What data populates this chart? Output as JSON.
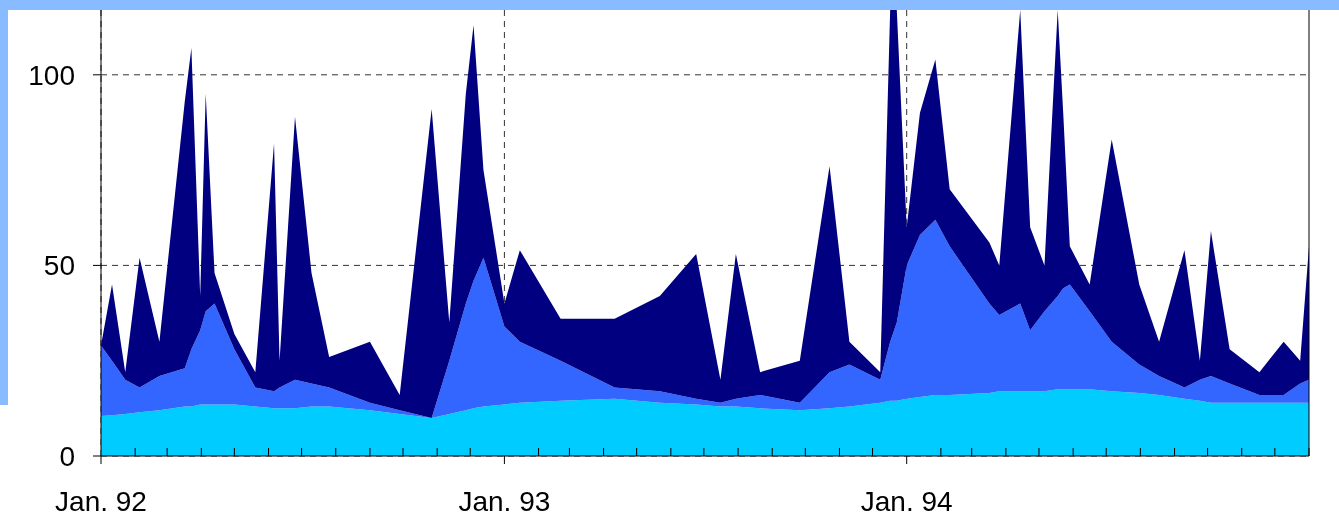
{
  "chart_data": {
    "type": "area",
    "stacked": true,
    "grid": true,
    "line_style": "dashed",
    "xlim": [
      "1992-01-01",
      "1995-01-01"
    ],
    "ylim": [
      0,
      117
    ],
    "yticks": [
      0,
      50,
      100
    ],
    "xticks": [
      {
        "value": "1992-01-01",
        "label": "Jan. 92"
      },
      {
        "value": "1992-02-01",
        "label": null
      },
      {
        "value": "1992-03-01",
        "label": null
      },
      {
        "value": "1992-04-01",
        "label": null
      },
      {
        "value": "1992-05-01",
        "label": null
      },
      {
        "value": "1992-06-01",
        "label": null
      },
      {
        "value": "1992-07-01",
        "label": null
      },
      {
        "value": "1992-08-01",
        "label": null
      },
      {
        "value": "1992-09-01",
        "label": null
      },
      {
        "value": "1992-10-01",
        "label": null
      },
      {
        "value": "1992-11-01",
        "label": null
      },
      {
        "value": "1992-12-01",
        "label": null
      },
      {
        "value": "1993-01-01",
        "label": "Jan. 93"
      },
      {
        "value": "1993-02-01",
        "label": null
      },
      {
        "value": "1993-03-01",
        "label": null
      },
      {
        "value": "1993-04-01",
        "label": null
      },
      {
        "value": "1993-05-01",
        "label": null
      },
      {
        "value": "1993-06-01",
        "label": null
      },
      {
        "value": "1993-07-01",
        "label": null
      },
      {
        "value": "1993-08-01",
        "label": null
      },
      {
        "value": "1993-09-01",
        "label": null
      },
      {
        "value": "1993-10-01",
        "label": null
      },
      {
        "value": "1993-11-01",
        "label": null
      },
      {
        "value": "1993-12-01",
        "label": null
      },
      {
        "value": "1994-01-01",
        "label": "Jan. 94"
      },
      {
        "value": "1994-02-01",
        "label": null
      },
      {
        "value": "1994-03-01",
        "label": null
      },
      {
        "value": "1994-04-01",
        "label": null
      },
      {
        "value": "1994-05-01",
        "label": null
      },
      {
        "value": "1994-06-01",
        "label": null
      },
      {
        "value": "1994-07-01",
        "label": null
      },
      {
        "value": "1994-08-01",
        "label": null
      },
      {
        "value": "1994-09-01",
        "label": null
      },
      {
        "value": "1994-10-01",
        "label": null
      },
      {
        "value": "1994-11-01",
        "label": null
      },
      {
        "value": "1994-12-01",
        "label": null
      },
      {
        "value": "1995-01-01",
        "label": null
      }
    ],
    "x": [
      "1992-01-01",
      "1992-01-11",
      "1992-01-23",
      "1992-02-05",
      "1992-02-23",
      "1992-03-17",
      "1992-03-23",
      "1992-03-31",
      "1992-04-05",
      "1992-04-13",
      "1992-05-01",
      "1992-05-20",
      "1992-06-06",
      "1992-06-11",
      "1992-06-25",
      "1992-07-10",
      "1992-07-26",
      "1992-09-01",
      "1992-09-28",
      "1992-10-27",
      "1992-11-12",
      "1992-11-27",
      "1992-12-04",
      "1992-12-13",
      "1993-01-01",
      "1993-01-15",
      "1993-02-21",
      "1993-04-11",
      "1993-05-22",
      "1993-06-24",
      "1993-07-16",
      "1993-07-30",
      "1993-08-21",
      "1993-09-26",
      "1993-10-23",
      "1993-11-10",
      "1993-12-08",
      "1993-12-17",
      "1993-12-23",
      "1994-01-01",
      "1994-01-13",
      "1994-01-27",
      "1994-02-09",
      "1994-03-17",
      "1994-03-26",
      "1994-04-14",
      "1994-04-23",
      "1994-05-06",
      "1994-05-18",
      "1994-05-23",
      "1994-05-29",
      "1994-06-16",
      "1994-07-06",
      "1994-07-31",
      "1994-08-18",
      "1994-09-10",
      "1994-09-24",
      "1994-10-04",
      "1994-10-21",
      "1994-11-17",
      "1994-12-09",
      "1994-12-24",
      "1995-01-01"
    ],
    "series": [
      {
        "color": "#00ccff",
        "values": [
          10.5,
          10.7,
          11,
          11.5,
          12,
          13,
          13,
          13.5,
          13.5,
          13.5,
          13.5,
          13,
          12.5,
          12.5,
          12.5,
          13,
          13,
          12,
          11,
          10,
          11,
          12,
          12.5,
          13,
          13.5,
          14,
          14.5,
          15,
          14,
          13.5,
          13,
          13,
          12.5,
          12,
          12.5,
          13,
          14,
          14.5,
          14.5,
          15,
          15.5,
          16,
          16,
          16.5,
          17,
          17,
          17,
          17,
          17.5,
          17.5,
          17.5,
          17.5,
          17,
          16.5,
          16,
          15,
          14.5,
          14,
          14,
          14,
          14,
          14,
          14
        ]
      },
      {
        "color": "#3366ff",
        "values": [
          18.5,
          14.3,
          9,
          6.5,
          9,
          10,
          15,
          19.5,
          24.5,
          26.5,
          14.5,
          5,
          4.5,
          5.5,
          7.5,
          6,
          5,
          2,
          1,
          0,
          14,
          28,
          33.5,
          39,
          20.5,
          16,
          10.5,
          3,
          3,
          1.5,
          1,
          2,
          3.5,
          2,
          9.5,
          11,
          6,
          15.5,
          20.5,
          35,
          42.5,
          46,
          39,
          23.5,
          20,
          23,
          16,
          21,
          24.5,
          26.5,
          27.5,
          20.5,
          13,
          7.5,
          5,
          3,
          5.5,
          7,
          5,
          2,
          2,
          5,
          6
        ]
      },
      {
        "color": "#000080",
        "values": [
          0,
          20,
          2,
          34,
          9,
          70,
          79,
          9,
          57,
          8,
          4,
          4,
          65,
          7,
          69,
          29,
          8,
          16,
          4,
          81,
          10,
          55,
          67,
          23,
          6,
          24,
          11,
          18,
          25,
          38,
          6,
          38,
          6,
          11,
          54,
          6,
          2,
          87,
          82,
          10,
          32,
          42,
          15,
          16,
          13,
          77,
          27,
          12,
          75,
          46,
          10,
          7,
          53,
          21,
          9,
          36,
          5,
          38,
          9,
          6,
          14,
          6,
          35
        ]
      }
    ]
  }
}
